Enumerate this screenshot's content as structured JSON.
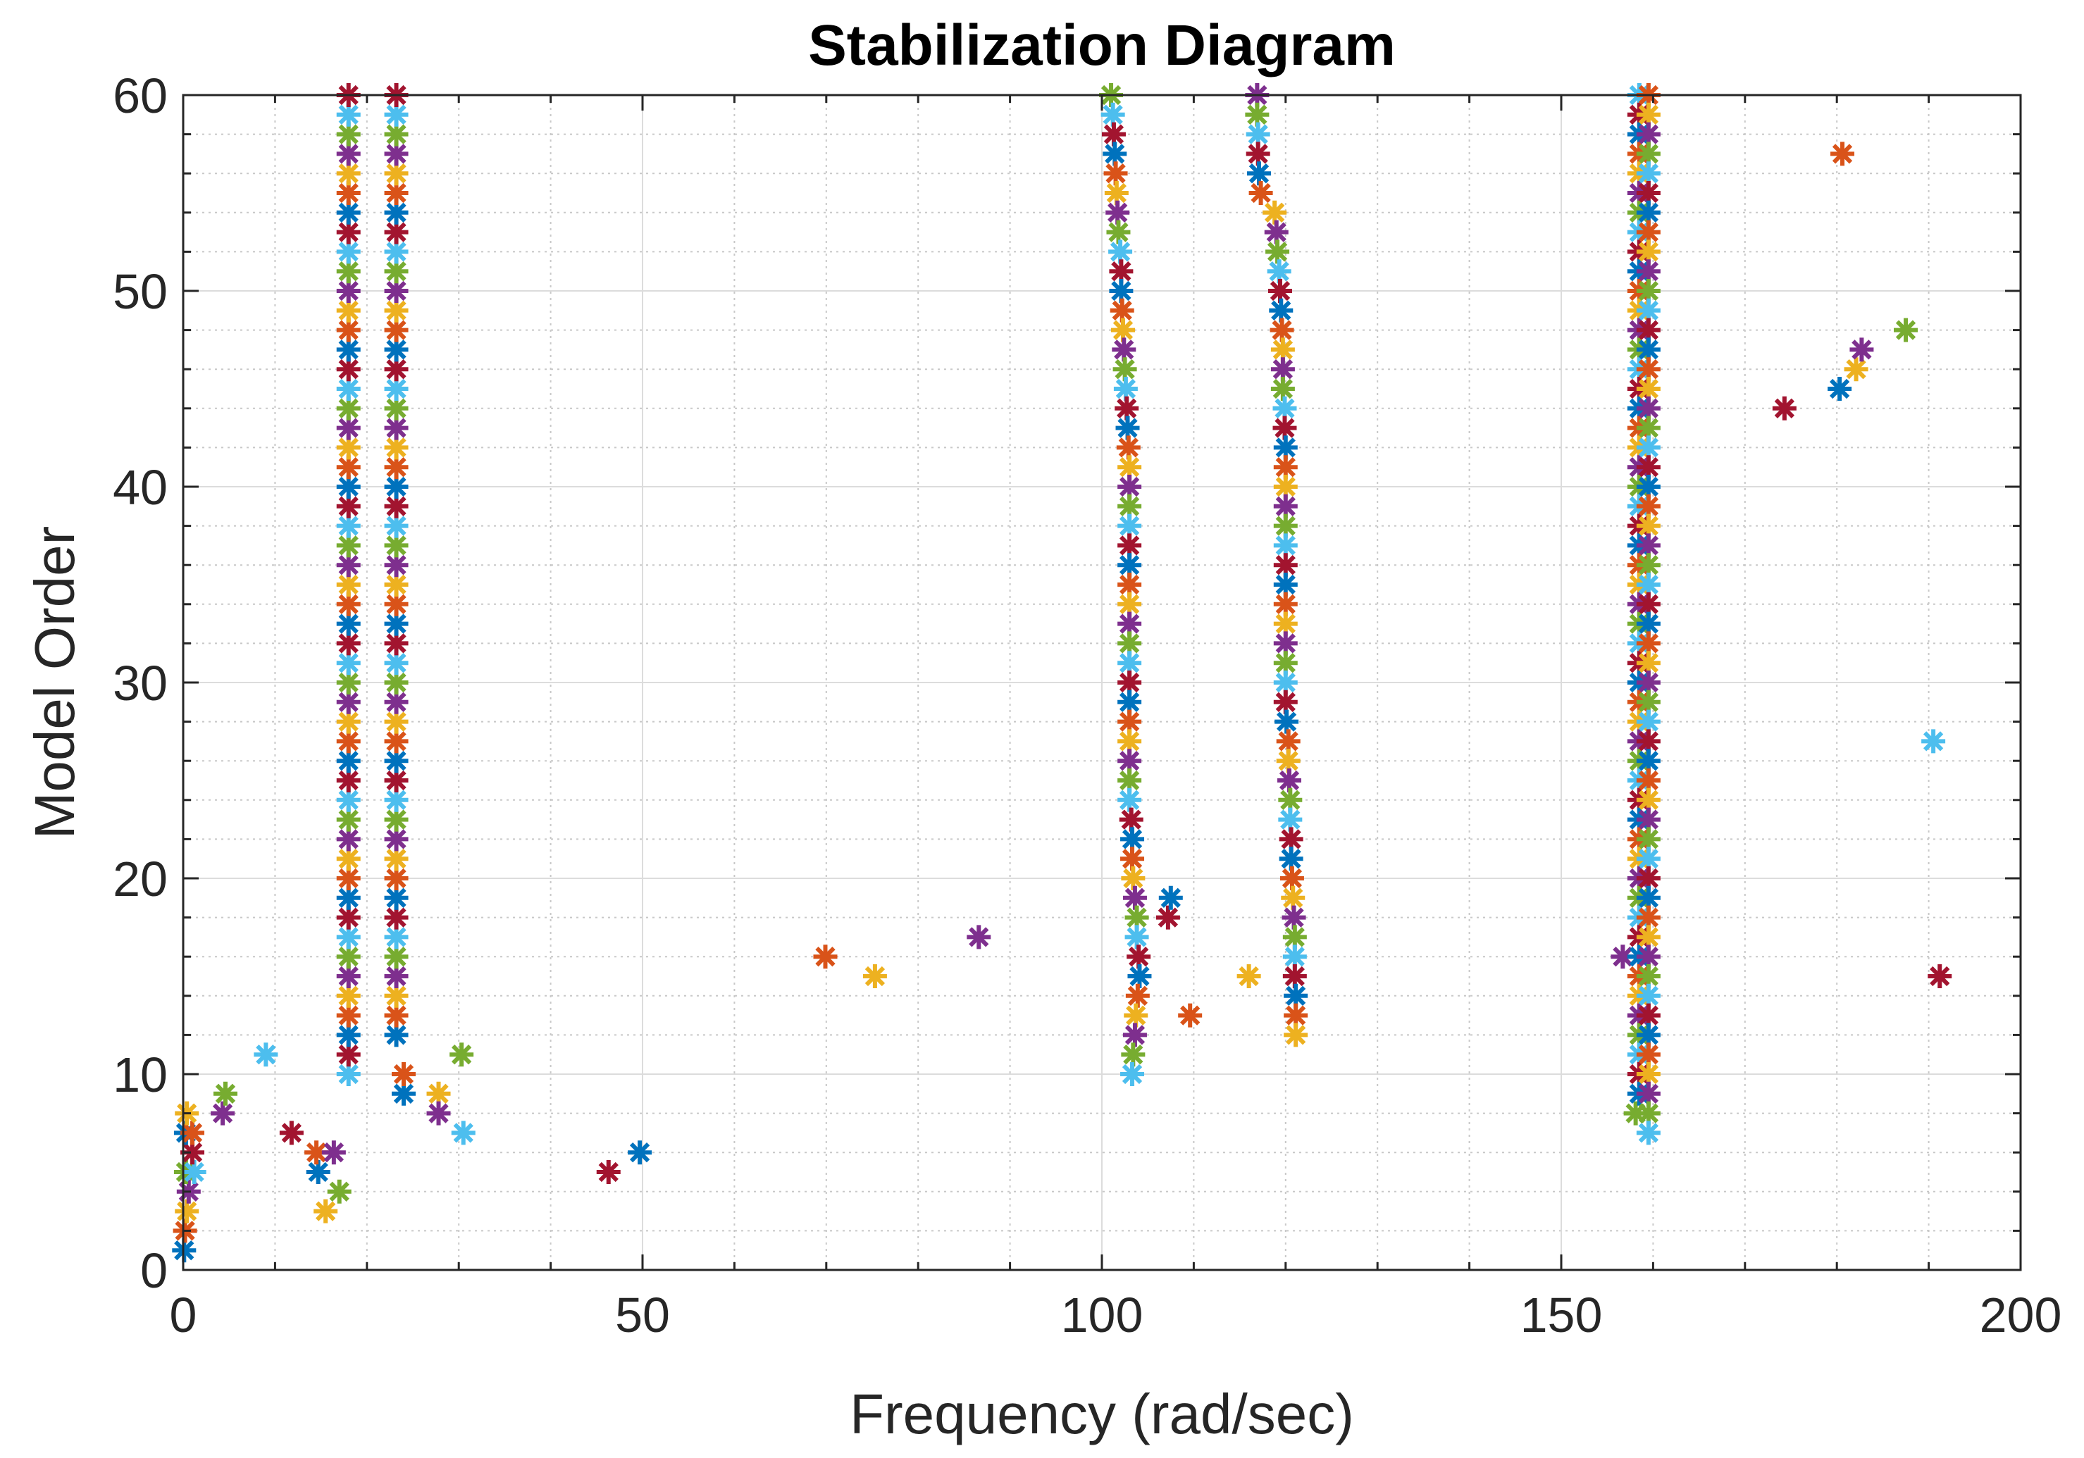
{
  "chart_data": {
    "type": "scatter",
    "title": "Stabilization Diagram",
    "xlabel": "Frequency (rad/sec)",
    "ylabel": "Model Order",
    "xlim": [
      0,
      200
    ],
    "ylim": [
      0,
      60
    ],
    "xticks": [
      0,
      50,
      100,
      150,
      200
    ],
    "yticks": [
      0,
      10,
      20,
      30,
      40,
      50,
      60
    ],
    "x_minor_step": 10,
    "y_minor_step": 2,
    "grid": true,
    "marker": "asterisk",
    "colors": [
      "#0072BD",
      "#D95319",
      "#EDB120",
      "#7E2F8E",
      "#77AC30",
      "#4DBEEE",
      "#A2142F"
    ],
    "points": [
      [
        0.1,
        1
      ],
      [
        0.2,
        2
      ],
      [
        0.4,
        3
      ],
      [
        0.6,
        4
      ],
      [
        0.3,
        5
      ],
      [
        1.2,
        5
      ],
      [
        1.0,
        6
      ],
      [
        0.3,
        7
      ],
      [
        1.0,
        7
      ],
      [
        0.4,
        8
      ],
      [
        4.3,
        8
      ],
      [
        4.6,
        9
      ],
      [
        9.0,
        11
      ],
      [
        11.8,
        7
      ],
      [
        14.7,
        5
      ],
      [
        14.5,
        6
      ],
      [
        15.5,
        3
      ],
      [
        16.4,
        6
      ],
      [
        17.0,
        4
      ],
      [
        18.0,
        10
      ],
      [
        18.0,
        11
      ],
      [
        18.0,
        12
      ],
      [
        18.0,
        13
      ],
      [
        18.0,
        14
      ],
      [
        18.0,
        15
      ],
      [
        18.0,
        16
      ],
      [
        18.0,
        17
      ],
      [
        18.0,
        18
      ],
      [
        18.0,
        19
      ],
      [
        18.0,
        20
      ],
      [
        18.0,
        21
      ],
      [
        18.0,
        22
      ],
      [
        18.0,
        23
      ],
      [
        18.0,
        24
      ],
      [
        18.0,
        25
      ],
      [
        18.0,
        26
      ],
      [
        18.0,
        27
      ],
      [
        18.0,
        28
      ],
      [
        18.0,
        29
      ],
      [
        18.0,
        30
      ],
      [
        18.0,
        31
      ],
      [
        18.0,
        32
      ],
      [
        18.0,
        33
      ],
      [
        18.0,
        34
      ],
      [
        18.0,
        35
      ],
      [
        18.0,
        36
      ],
      [
        18.0,
        37
      ],
      [
        18.0,
        38
      ],
      [
        18.0,
        39
      ],
      [
        18.0,
        40
      ],
      [
        18.0,
        41
      ],
      [
        18.0,
        42
      ],
      [
        18.0,
        43
      ],
      [
        18.0,
        44
      ],
      [
        18.0,
        45
      ],
      [
        18.0,
        46
      ],
      [
        18.0,
        47
      ],
      [
        18.0,
        48
      ],
      [
        18.0,
        49
      ],
      [
        18.0,
        50
      ],
      [
        18.0,
        51
      ],
      [
        18.0,
        52
      ],
      [
        18.0,
        53
      ],
      [
        18.0,
        54
      ],
      [
        18.0,
        55
      ],
      [
        18.0,
        56
      ],
      [
        18.0,
        57
      ],
      [
        18.0,
        58
      ],
      [
        18.0,
        59
      ],
      [
        18.0,
        60
      ],
      [
        23.2,
        12
      ],
      [
        23.2,
        13
      ],
      [
        23.2,
        14
      ],
      [
        23.2,
        15
      ],
      [
        23.2,
        16
      ],
      [
        23.2,
        17
      ],
      [
        23.2,
        18
      ],
      [
        23.2,
        19
      ],
      [
        23.2,
        20
      ],
      [
        23.2,
        21
      ],
      [
        23.2,
        22
      ],
      [
        23.2,
        23
      ],
      [
        23.2,
        24
      ],
      [
        23.2,
        25
      ],
      [
        23.2,
        26
      ],
      [
        23.2,
        27
      ],
      [
        23.2,
        28
      ],
      [
        23.2,
        29
      ],
      [
        23.2,
        30
      ],
      [
        23.2,
        31
      ],
      [
        23.2,
        32
      ],
      [
        23.2,
        33
      ],
      [
        23.2,
        34
      ],
      [
        23.2,
        35
      ],
      [
        23.2,
        36
      ],
      [
        23.2,
        37
      ],
      [
        23.2,
        38
      ],
      [
        23.2,
        39
      ],
      [
        23.2,
        40
      ],
      [
        23.2,
        41
      ],
      [
        23.2,
        42
      ],
      [
        23.2,
        43
      ],
      [
        23.2,
        44
      ],
      [
        23.2,
        45
      ],
      [
        23.2,
        46
      ],
      [
        23.2,
        47
      ],
      [
        23.2,
        48
      ],
      [
        23.2,
        49
      ],
      [
        23.2,
        50
      ],
      [
        23.2,
        51
      ],
      [
        23.2,
        52
      ],
      [
        23.2,
        53
      ],
      [
        23.2,
        54
      ],
      [
        23.2,
        55
      ],
      [
        23.2,
        56
      ],
      [
        23.2,
        57
      ],
      [
        23.2,
        58
      ],
      [
        23.2,
        59
      ],
      [
        23.2,
        60
      ],
      [
        24.0,
        9
      ],
      [
        24.0,
        10
      ],
      [
        27.8,
        9
      ],
      [
        27.8,
        8
      ],
      [
        30.3,
        11
      ],
      [
        30.5,
        7
      ],
      [
        46.3,
        5
      ],
      [
        49.7,
        6
      ],
      [
        69.9,
        16
      ],
      [
        75.3,
        15
      ],
      [
        86.6,
        17
      ],
      [
        101.0,
        60
      ],
      [
        101.2,
        59
      ],
      [
        101.3,
        58
      ],
      [
        101.4,
        57
      ],
      [
        101.5,
        56
      ],
      [
        101.6,
        55
      ],
      [
        101.7,
        54
      ],
      [
        101.8,
        53
      ],
      [
        102.0,
        52
      ],
      [
        102.1,
        51
      ],
      [
        102.1,
        50
      ],
      [
        102.2,
        49
      ],
      [
        102.3,
        48
      ],
      [
        102.4,
        47
      ],
      [
        102.5,
        46
      ],
      [
        102.6,
        45
      ],
      [
        102.7,
        44
      ],
      [
        102.8,
        43
      ],
      [
        102.9,
        42
      ],
      [
        103.0,
        41
      ],
      [
        103.0,
        40
      ],
      [
        103.0,
        39
      ],
      [
        103.0,
        38
      ],
      [
        103.0,
        37
      ],
      [
        103.0,
        36
      ],
      [
        103.0,
        35
      ],
      [
        103.0,
        34
      ],
      [
        103.0,
        33
      ],
      [
        103.0,
        32
      ],
      [
        103.0,
        31
      ],
      [
        103.0,
        30
      ],
      [
        103.0,
        29
      ],
      [
        103.0,
        28
      ],
      [
        103.0,
        27
      ],
      [
        103.0,
        26
      ],
      [
        103.0,
        25
      ],
      [
        103.0,
        24
      ],
      [
        103.2,
        23
      ],
      [
        103.3,
        22
      ],
      [
        103.3,
        21
      ],
      [
        103.4,
        20
      ],
      [
        103.6,
        19
      ],
      [
        103.8,
        18
      ],
      [
        103.8,
        17
      ],
      [
        104.0,
        16
      ],
      [
        104.1,
        15
      ],
      [
        103.9,
        14
      ],
      [
        103.7,
        13
      ],
      [
        103.6,
        12
      ],
      [
        103.4,
        11
      ],
      [
        103.3,
        10
      ],
      [
        107.2,
        18
      ],
      [
        107.5,
        19
      ],
      [
        109.6,
        13
      ],
      [
        116.0,
        15
      ],
      [
        116.9,
        60
      ],
      [
        116.9,
        59
      ],
      [
        117.0,
        58
      ],
      [
        117.0,
        57
      ],
      [
        117.1,
        56
      ],
      [
        117.3,
        55
      ],
      [
        118.8,
        54
      ],
      [
        119.0,
        53
      ],
      [
        119.1,
        52
      ],
      [
        119.3,
        51
      ],
      [
        119.4,
        50
      ],
      [
        119.5,
        49
      ],
      [
        119.6,
        48
      ],
      [
        119.7,
        47
      ],
      [
        119.7,
        46
      ],
      [
        119.7,
        45
      ],
      [
        119.9,
        44
      ],
      [
        119.9,
        43
      ],
      [
        120.0,
        42
      ],
      [
        120.0,
        41
      ],
      [
        120.0,
        40
      ],
      [
        120.0,
        39
      ],
      [
        120.0,
        38
      ],
      [
        120.0,
        37
      ],
      [
        120.0,
        36
      ],
      [
        120.0,
        35
      ],
      [
        120.0,
        34
      ],
      [
        120.0,
        33
      ],
      [
        120.0,
        32
      ],
      [
        120.0,
        31
      ],
      [
        120.0,
        30
      ],
      [
        120.0,
        29
      ],
      [
        120.1,
        28
      ],
      [
        120.3,
        27
      ],
      [
        120.3,
        26
      ],
      [
        120.4,
        25
      ],
      [
        120.5,
        24
      ],
      [
        120.5,
        23
      ],
      [
        120.6,
        22
      ],
      [
        120.6,
        21
      ],
      [
        120.7,
        20
      ],
      [
        120.8,
        19
      ],
      [
        120.9,
        18
      ],
      [
        121.0,
        17
      ],
      [
        121.0,
        16
      ],
      [
        121.0,
        15
      ],
      [
        121.1,
        14
      ],
      [
        121.1,
        13
      ],
      [
        121.1,
        12
      ],
      [
        156.7,
        16
      ],
      [
        158.1,
        8
      ],
      [
        158.5,
        60
      ],
      [
        158.5,
        59
      ],
      [
        158.5,
        58
      ],
      [
        158.5,
        57
      ],
      [
        158.5,
        56
      ],
      [
        158.5,
        55
      ],
      [
        158.5,
        54
      ],
      [
        158.5,
        53
      ],
      [
        158.5,
        52
      ],
      [
        158.5,
        51
      ],
      [
        158.5,
        50
      ],
      [
        158.5,
        49
      ],
      [
        158.5,
        48
      ],
      [
        158.5,
        47
      ],
      [
        158.5,
        46
      ],
      [
        158.5,
        45
      ],
      [
        158.5,
        44
      ],
      [
        158.5,
        43
      ],
      [
        158.5,
        42
      ],
      [
        158.5,
        41
      ],
      [
        158.5,
        40
      ],
      [
        158.5,
        39
      ],
      [
        158.5,
        38
      ],
      [
        158.5,
        37
      ],
      [
        158.5,
        36
      ],
      [
        158.5,
        35
      ],
      [
        158.5,
        34
      ],
      [
        158.5,
        33
      ],
      [
        158.5,
        32
      ],
      [
        158.5,
        31
      ],
      [
        158.5,
        30
      ],
      [
        158.5,
        29
      ],
      [
        158.5,
        28
      ],
      [
        158.5,
        27
      ],
      [
        158.5,
        26
      ],
      [
        158.5,
        25
      ],
      [
        158.5,
        24
      ],
      [
        158.5,
        23
      ],
      [
        158.5,
        22
      ],
      [
        158.5,
        21
      ],
      [
        158.5,
        20
      ],
      [
        158.5,
        19
      ],
      [
        158.5,
        18
      ],
      [
        158.5,
        17
      ],
      [
        158.5,
        16
      ],
      [
        158.5,
        15
      ],
      [
        158.5,
        14
      ],
      [
        158.5,
        13
      ],
      [
        158.5,
        12
      ],
      [
        158.5,
        11
      ],
      [
        158.5,
        10
      ],
      [
        158.5,
        9
      ],
      [
        159.5,
        60
      ],
      [
        159.5,
        59
      ],
      [
        159.5,
        58
      ],
      [
        159.5,
        57
      ],
      [
        159.5,
        56
      ],
      [
        159.5,
        55
      ],
      [
        159.5,
        54
      ],
      [
        159.5,
        53
      ],
      [
        159.5,
        52
      ],
      [
        159.5,
        51
      ],
      [
        159.5,
        50
      ],
      [
        159.5,
        49
      ],
      [
        159.5,
        48
      ],
      [
        159.5,
        47
      ],
      [
        159.5,
        46
      ],
      [
        159.5,
        45
      ],
      [
        159.5,
        44
      ],
      [
        159.5,
        43
      ],
      [
        159.5,
        42
      ],
      [
        159.5,
        41
      ],
      [
        159.5,
        40
      ],
      [
        159.5,
        39
      ],
      [
        159.5,
        38
      ],
      [
        159.5,
        37
      ],
      [
        159.5,
        36
      ],
      [
        159.5,
        35
      ],
      [
        159.5,
        34
      ],
      [
        159.5,
        33
      ],
      [
        159.5,
        32
      ],
      [
        159.5,
        31
      ],
      [
        159.5,
        30
      ],
      [
        159.5,
        29
      ],
      [
        159.5,
        28
      ],
      [
        159.5,
        27
      ],
      [
        159.5,
        26
      ],
      [
        159.5,
        25
      ],
      [
        159.5,
        24
      ],
      [
        159.5,
        23
      ],
      [
        159.5,
        22
      ],
      [
        159.5,
        21
      ],
      [
        159.5,
        20
      ],
      [
        159.5,
        19
      ],
      [
        159.5,
        18
      ],
      [
        159.5,
        17
      ],
      [
        159.5,
        16
      ],
      [
        159.5,
        15
      ],
      [
        159.5,
        14
      ],
      [
        159.5,
        13
      ],
      [
        159.5,
        12
      ],
      [
        159.5,
        11
      ],
      [
        159.5,
        10
      ],
      [
        159.5,
        9
      ],
      [
        159.5,
        8
      ],
      [
        159.5,
        7
      ],
      [
        174.3,
        44
      ],
      [
        180.3,
        45
      ],
      [
        180.6,
        57
      ],
      [
        182.1,
        46
      ],
      [
        182.7,
        47
      ],
      [
        187.5,
        48
      ],
      [
        190.5,
        27
      ],
      [
        191.2,
        15
      ]
    ]
  }
}
